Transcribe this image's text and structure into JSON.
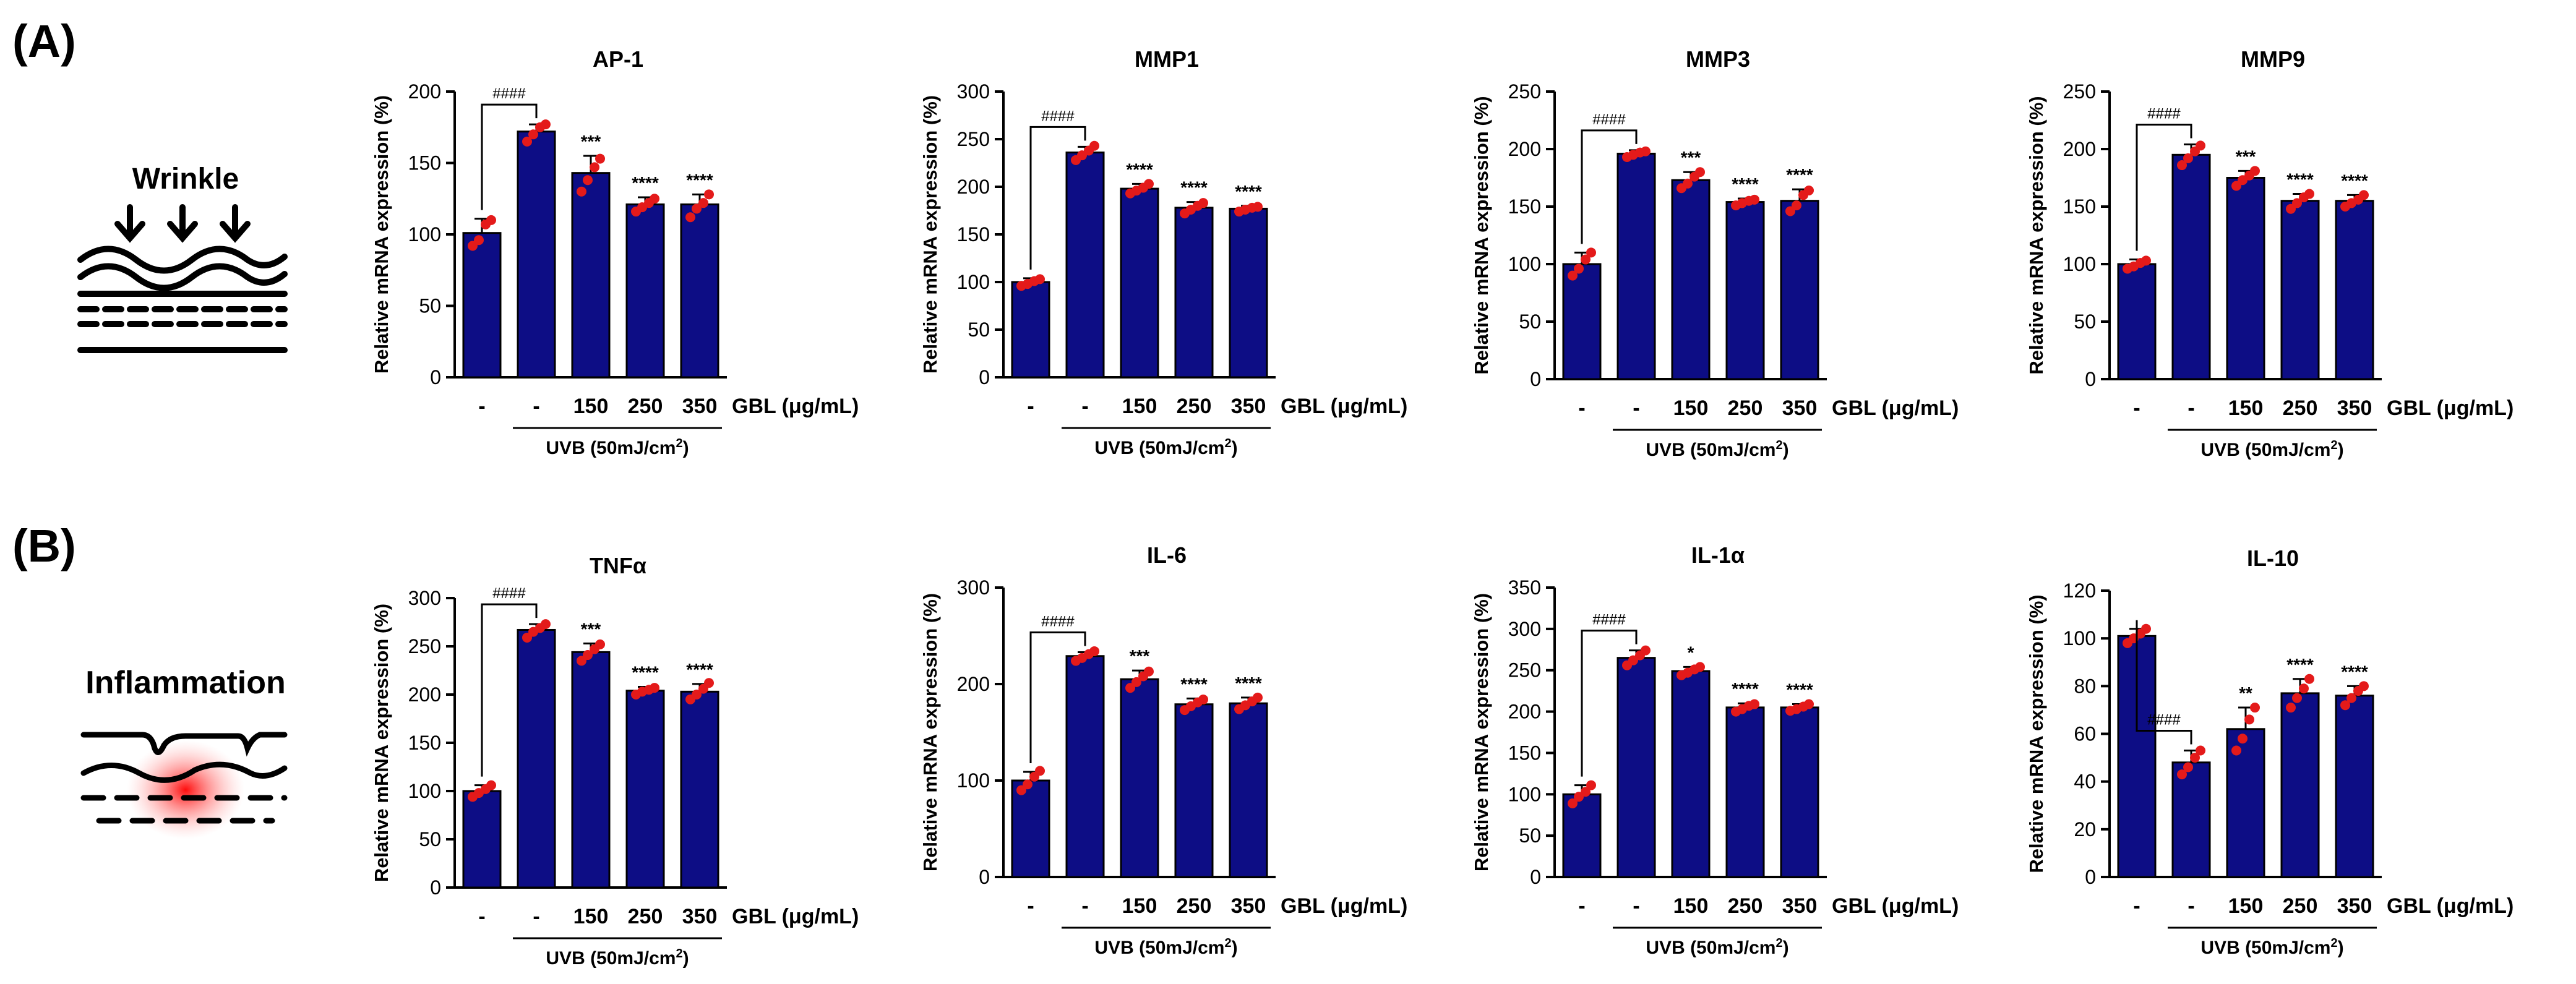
{
  "panels": [
    {
      "label": "(A)",
      "illustration": "Wrinkle"
    },
    {
      "label": "(B)",
      "illustration": "Inflammation"
    }
  ],
  "colors": {
    "bar": "#0d0d85",
    "point": "#e41a1a",
    "axis": "#000000"
  },
  "common": {
    "ylabel": "Relative mRNA expression (%)",
    "categories": [
      "-",
      "-",
      "150",
      "250",
      "350"
    ],
    "gbl_label": "GBL (μg/mL)",
    "uvb_label_prefix": "UVB (50mJ/cm",
    "uvb_label_sup": "2",
    "uvb_label_suffix": ")"
  },
  "chart_data": [
    {
      "type": "bar",
      "title": "AP-1",
      "ylim": [
        0,
        200
      ],
      "ticks": [
        0,
        50,
        100,
        150,
        200
      ],
      "values": [
        101,
        172,
        143,
        121,
        121
      ],
      "errors": [
        10,
        5,
        12,
        5,
        7
      ],
      "points": [
        [
          92,
          96,
          107,
          110
        ],
        [
          165,
          170,
          175,
          177
        ],
        [
          130,
          138,
          147,
          153
        ],
        [
          116,
          119,
          122,
          125
        ],
        [
          112,
          118,
          122,
          128
        ]
      ],
      "annotations": [
        "",
        "####",
        "***",
        "****",
        "****"
      ]
    },
    {
      "type": "bar",
      "title": "MMP1",
      "ylim": [
        0,
        300
      ],
      "ticks": [
        0,
        50,
        100,
        150,
        200,
        250,
        300
      ],
      "values": [
        100,
        236,
        198,
        178,
        177
      ],
      "errors": [
        4,
        6,
        5,
        6,
        3
      ],
      "points": [
        [
          96,
          98,
          101,
          103
        ],
        [
          228,
          233,
          238,
          243
        ],
        [
          193,
          196,
          199,
          203
        ],
        [
          172,
          176,
          180,
          183
        ],
        [
          174,
          176,
          178,
          179
        ]
      ],
      "annotations": [
        "",
        "####",
        "****",
        "****",
        "****"
      ]
    },
    {
      "type": "bar",
      "title": "MMP3",
      "ylim": [
        0,
        250
      ],
      "ticks": [
        0,
        50,
        100,
        150,
        200,
        250
      ],
      "values": [
        100,
        196,
        173,
        154,
        155
      ],
      "errors": [
        10,
        3,
        7,
        3,
        10
      ],
      "points": [
        [
          90,
          96,
          104,
          110
        ],
        [
          193,
          195,
          197,
          198
        ],
        [
          166,
          170,
          176,
          180
        ],
        [
          151,
          153,
          155,
          156
        ],
        [
          146,
          151,
          160,
          164
        ]
      ],
      "annotations": [
        "",
        "####",
        "***",
        "****",
        "****"
      ]
    },
    {
      "type": "bar",
      "title": "MMP9",
      "ylim": [
        0,
        250
      ],
      "ticks": [
        0,
        50,
        100,
        150,
        200,
        250
      ],
      "values": [
        100,
        195,
        175,
        155,
        155
      ],
      "errors": [
        4,
        9,
        6,
        6,
        5
      ],
      "points": [
        [
          96,
          98,
          101,
          103
        ],
        [
          186,
          192,
          198,
          203
        ],
        [
          168,
          173,
          177,
          181
        ],
        [
          148,
          153,
          158,
          161
        ],
        [
          150,
          153,
          156,
          160
        ]
      ],
      "annotations": [
        "",
        "####",
        "***",
        "****",
        "****"
      ]
    },
    {
      "type": "bar",
      "title": "TNFα",
      "ylim": [
        0,
        300
      ],
      "ticks": [
        0,
        50,
        100,
        150,
        200,
        250,
        300
      ],
      "values": [
        100,
        267,
        244,
        204,
        203
      ],
      "errors": [
        6,
        6,
        9,
        4,
        8
      ],
      "points": [
        [
          94,
          98,
          102,
          106
        ],
        [
          259,
          265,
          269,
          273
        ],
        [
          235,
          241,
          247,
          252
        ],
        [
          200,
          203,
          205,
          207
        ],
        [
          195,
          200,
          206,
          212
        ]
      ],
      "annotations": [
        "",
        "####",
        "***",
        "****",
        "****"
      ]
    },
    {
      "type": "bar",
      "title": "IL-6",
      "ylim": [
        0,
        300
      ],
      "ticks": [
        0,
        100,
        200,
        300
      ],
      "values": [
        100,
        229,
        205,
        179,
        180
      ],
      "errors": [
        9,
        4,
        9,
        6,
        6
      ],
      "points": [
        [
          90,
          96,
          104,
          110
        ],
        [
          224,
          227,
          231,
          234
        ],
        [
          196,
          202,
          208,
          213
        ],
        [
          173,
          177,
          181,
          184
        ],
        [
          174,
          178,
          182,
          186
        ]
      ],
      "annotations": [
        "",
        "####",
        "***",
        "****",
        "****"
      ]
    },
    {
      "type": "bar",
      "title": "IL-1α",
      "ylim": [
        0,
        350
      ],
      "ticks": [
        0,
        50,
        100,
        150,
        200,
        250,
        300,
        350
      ],
      "values": [
        100,
        265,
        249,
        205,
        205
      ],
      "errors": [
        11,
        9,
        5,
        5,
        4
      ],
      "points": [
        [
          89,
          97,
          103,
          111
        ],
        [
          256,
          262,
          268,
          274
        ],
        [
          244,
          247,
          251,
          254
        ],
        [
          200,
          203,
          207,
          209
        ],
        [
          201,
          203,
          206,
          209
        ]
      ],
      "annotations": [
        "",
        "####",
        "*",
        "****",
        "****"
      ]
    },
    {
      "type": "bar",
      "title": "IL-10",
      "ylim": [
        0,
        120
      ],
      "ticks": [
        0,
        20,
        40,
        60,
        80,
        100,
        120
      ],
      "values": [
        101,
        48,
        62,
        77,
        76
      ],
      "errors": [
        3,
        5,
        9,
        6,
        4
      ],
      "points": [
        [
          98,
          100,
          102,
          104
        ],
        [
          43,
          46,
          50,
          53
        ],
        [
          53,
          58,
          66,
          71
        ],
        [
          71,
          75,
          79,
          83
        ],
        [
          72,
          75,
          78,
          80
        ]
      ],
      "annotations": [
        "",
        "####",
        "**",
        "****",
        "****"
      ]
    }
  ]
}
